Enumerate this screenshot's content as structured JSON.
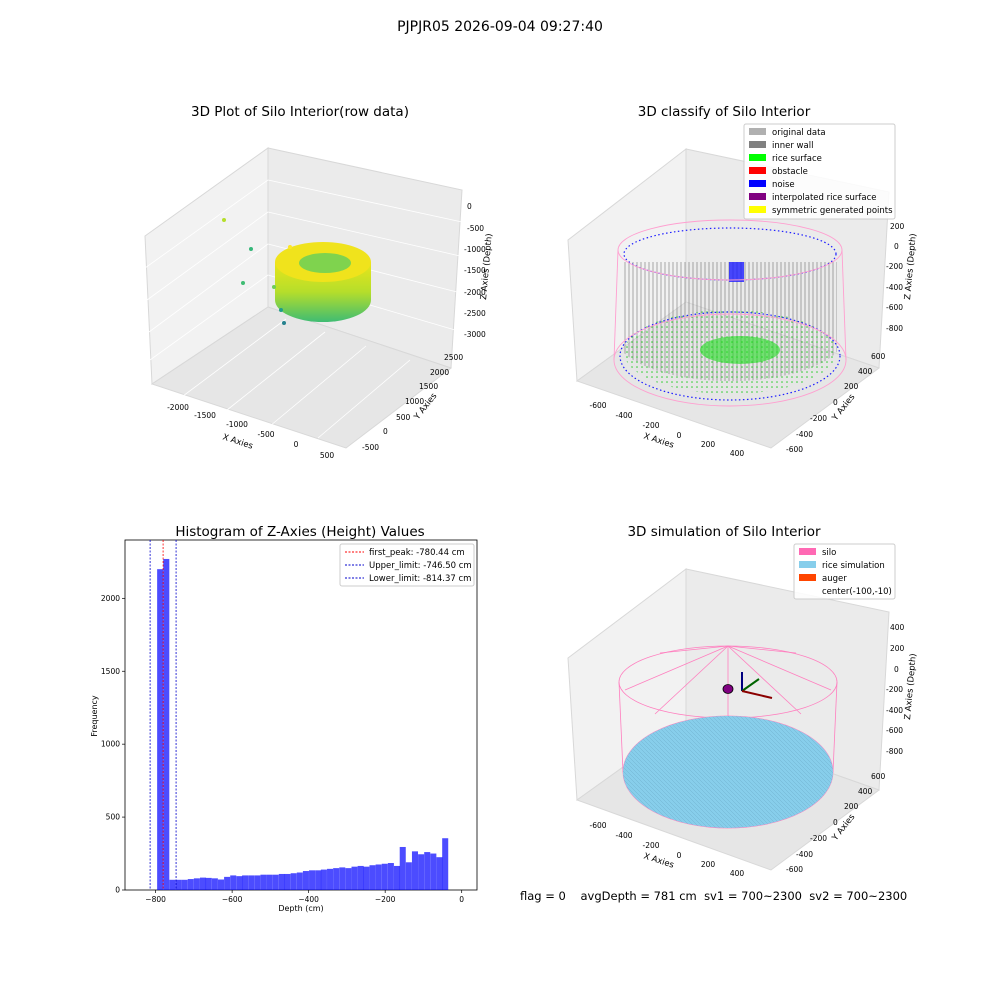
{
  "figure": {
    "suptitle": "PJPJR05 2026-09-04 09:27:40",
    "footer": {
      "flag": "flag = 0",
      "avg_depth": "avgDepth = 781 cm",
      "sv1": "sv1 = 700~2300",
      "sv2": "sv2 = 700~2300"
    }
  },
  "colors": {
    "hist_bar": "#0000ff",
    "first_peak_line": "#ff0000",
    "limit_lines": "#0000cc",
    "silo": "#ff69b4",
    "rice_simulation": "#87ceeb",
    "auger": "#ff4500",
    "inner_wall": "#808080",
    "rice_surface": "#00ff00",
    "noise": "#0000ff",
    "obstacle": "#ff0000",
    "interpolated_rice_surface": "#800080",
    "symmetric_generated_points": "#ffff00",
    "original_data": "#b0b0b0"
  },
  "chart_data": [
    {
      "type": "scatter3d",
      "title": "3D Plot of Silo Interior(row data)",
      "xlabel": "X Axies",
      "ylabel": "Y Axies",
      "zlabel": "Z Axies (Depth)",
      "xticks": [
        "-2000",
        "-1500",
        "-1000",
        "-500",
        "0",
        "500"
      ],
      "yticks": [
        "-500",
        "0",
        "500",
        "1000",
        "1500",
        "2000",
        "2500"
      ],
      "zticks": [
        "0",
        "-500",
        "-1000",
        "-1500",
        "-2000",
        "-2500",
        "-3000"
      ],
      "colormap": "viridis (by depth)"
    },
    {
      "type": "scatter3d",
      "title": "3D classify of Silo Interior",
      "xlabel": "X Axies",
      "ylabel": "Y Axies",
      "zlabel": "Z Axies (Depth)",
      "xticks": [
        "-600",
        "-400",
        "-200",
        "0",
        "200",
        "400"
      ],
      "yticks": [
        "-600",
        "-400",
        "-200",
        "0",
        "200",
        "400",
        "600"
      ],
      "zticks": [
        "200",
        "0",
        "-200",
        "-400",
        "-600",
        "-800"
      ],
      "legend": [
        "original data",
        "inner wall",
        "rice surface",
        "obstacle",
        "noise",
        "interpolated rice surface",
        "symmetric generated points"
      ],
      "legend_position": "upper right"
    },
    {
      "type": "bar",
      "title": "Histogram of Z-Axies (Height) Values",
      "xlabel": "Depth (cm)",
      "ylabel": "Frequency",
      "xlim": [
        -880,
        40
      ],
      "ylim": [
        0,
        2400
      ],
      "xticks": [
        -800,
        -600,
        -400,
        -200,
        0
      ],
      "xtick_labels": [
        "−800",
        "−600",
        "−400",
        "−200",
        "0"
      ],
      "yticks": [
        0,
        500,
        1000,
        1500,
        2000
      ],
      "bin_width": 15.8,
      "bins_start": [
        -796,
        -780,
        -764,
        -748,
        -732,
        -716,
        -700,
        -684,
        -669,
        -653,
        -637,
        -621,
        -605,
        -589,
        -574,
        -558,
        -542,
        -526,
        -510,
        -494,
        -478,
        -463,
        -447,
        -431,
        -415,
        -399,
        -383,
        -368,
        -352,
        -336,
        -320,
        -304,
        -288,
        -272,
        -257,
        -241,
        -225,
        -209,
        -193,
        -177,
        -162,
        -146,
        -130,
        -114,
        -98,
        -82,
        -66,
        -51,
        -35,
        -19
      ],
      "values": [
        2200,
        2270,
        70,
        70,
        70,
        75,
        80,
        85,
        83,
        80,
        72,
        90,
        100,
        95,
        100,
        100,
        100,
        105,
        105,
        105,
        110,
        110,
        115,
        120,
        130,
        135,
        135,
        140,
        145,
        150,
        155,
        150,
        160,
        165,
        160,
        170,
        175,
        180,
        185,
        165,
        295,
        190,
        265,
        245,
        260,
        250,
        225,
        355,
        0,
        0
      ],
      "ref_lines": [
        {
          "label": "first_peak: -780.44 cm",
          "x": -780.44,
          "color": "#ff0000"
        },
        {
          "label": "Upper_limit: -746.50 cm",
          "x": -746.5,
          "color": "#0000cc"
        },
        {
          "label": "Lower_limit: -814.37 cm",
          "x": -814.37,
          "color": "#0000cc"
        }
      ],
      "legend_position": "upper right"
    },
    {
      "type": "surface3d",
      "title": "3D simulation of Silo Interior",
      "xlabel": "X Axies",
      "ylabel": "Y Axies",
      "zlabel": "Z Axies (Depth)",
      "xticks": [
        "-600",
        "-400",
        "-200",
        "0",
        "200",
        "400"
      ],
      "yticks": [
        "-600",
        "-400",
        "-200",
        "0",
        "200",
        "400",
        "600"
      ],
      "zticks": [
        "400",
        "200",
        "0",
        "-200",
        "-400",
        "-600",
        "-800"
      ],
      "legend": [
        "silo",
        "rice simulation",
        "auger",
        "center(-100,-10)"
      ],
      "legend_position": "upper right"
    }
  ]
}
